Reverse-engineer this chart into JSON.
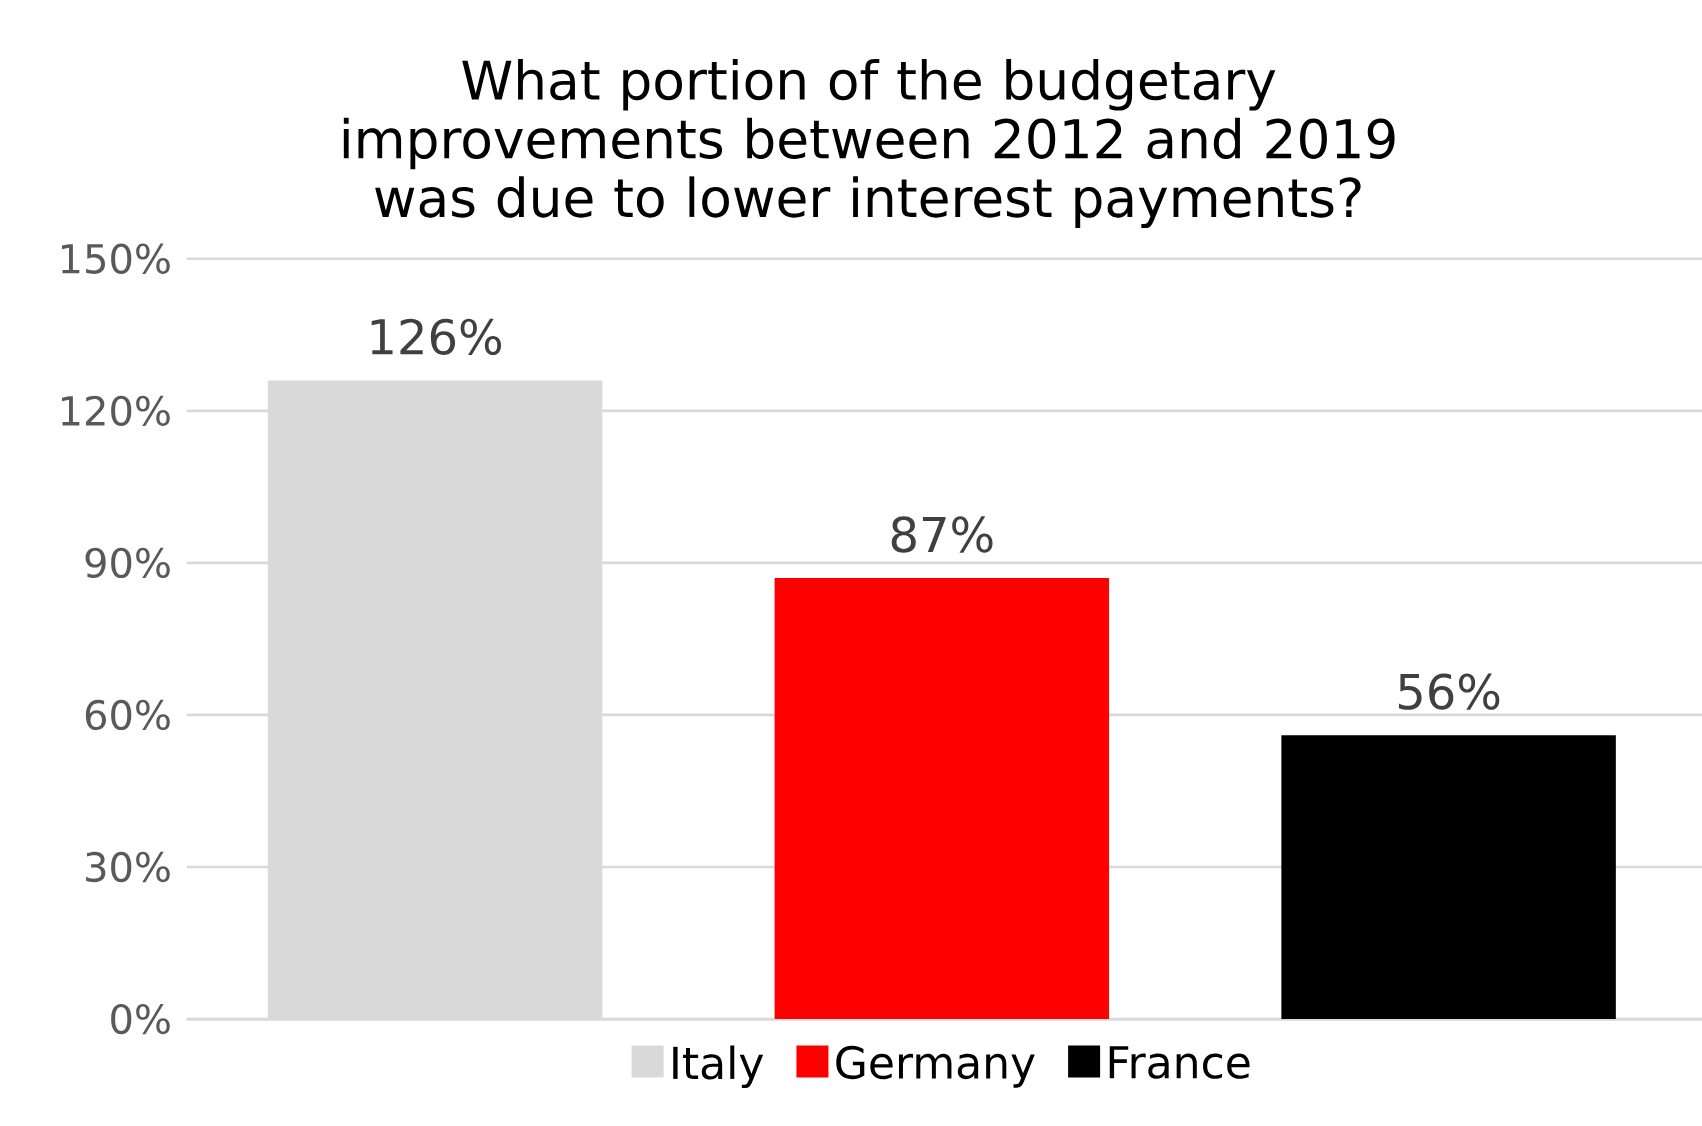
{
  "chart_data": {
    "type": "bar",
    "title": "What portion of the budgetary improvements between 2012 and 2019 was due to lower interest payments?",
    "categories": [
      null,
      null,
      null
    ],
    "series": [
      {
        "name": "Italy",
        "color": "#d9d9d9",
        "values": [
          126,
          null,
          null
        ],
        "value_labels": [
          "126%",
          null,
          null
        ]
      },
      {
        "name": "Germany",
        "color": "#ff0000",
        "values": [
          null,
          87,
          null
        ],
        "value_labels": [
          null,
          "87%",
          null
        ]
      },
      {
        "name": "France",
        "color": "#000000",
        "values": [
          null,
          null,
          56
        ],
        "value_labels": [
          null,
          null,
          "56%"
        ]
      }
    ],
    "ylim": [
      0,
      150
    ],
    "yticks": [
      {
        "value": 0,
        "label": "0%"
      },
      {
        "value": 30,
        "label": "30%"
      },
      {
        "value": 60,
        "label": "60%"
      },
      {
        "value": 90,
        "label": "90%"
      },
      {
        "value": 120,
        "label": "120%"
      },
      {
        "value": 150,
        "label": "150%"
      }
    ],
    "grid": "y",
    "legend": "bottom"
  }
}
